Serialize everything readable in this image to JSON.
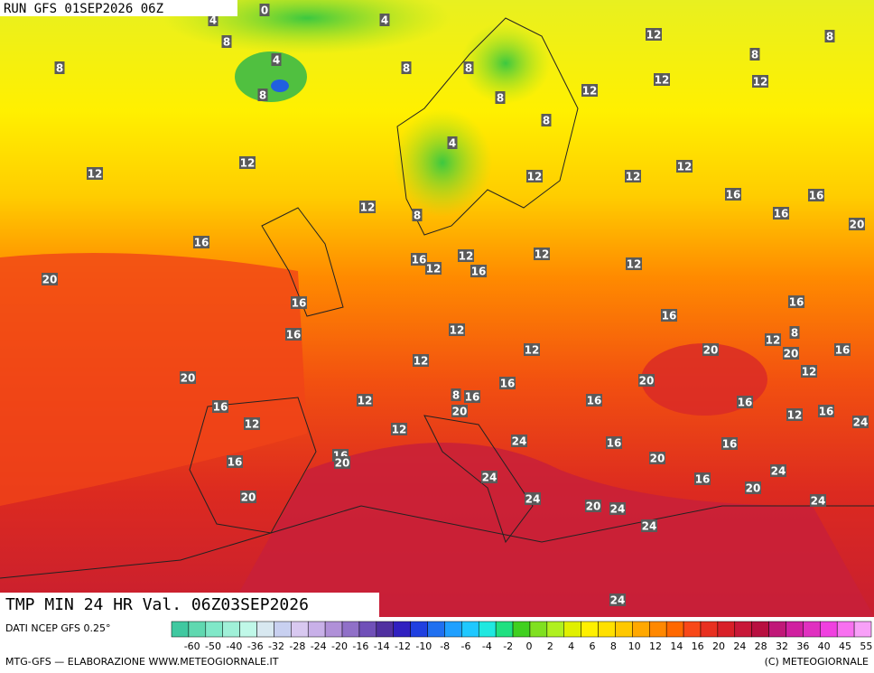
{
  "header": {
    "run": "RUN GFS 01SEP2026 06Z",
    "title": "TMP MIN 24 HR Val. 06Z03SEP2026"
  },
  "footer": {
    "source": "DATI NCEP GFS 0.25°",
    "credits": "MTG-GFS — ELABORAZIONE WWW.METEOGIORNALE.IT",
    "copyright": "(C) METEOGIORNALE"
  },
  "legend": {
    "labels": [
      "-60",
      "-50",
      "-40",
      "-36",
      "-32",
      "-28",
      "-24",
      "-20",
      "-16",
      "-14",
      "-12",
      "-10",
      "-8",
      "-6",
      "-4",
      "-2",
      "0",
      "2",
      "4",
      "6",
      "8",
      "10",
      "12",
      "14",
      "16",
      "20",
      "24",
      "28",
      "32",
      "36",
      "40",
      "45",
      "55"
    ]
  },
  "map": {
    "labels": [
      0,
      4,
      4,
      8,
      12,
      8,
      8,
      4,
      8,
      8,
      8,
      12,
      12,
      12,
      8,
      8,
      8,
      4,
      12,
      12,
      12,
      12,
      12,
      16,
      16,
      12,
      8,
      16,
      20,
      16,
      12,
      16,
      12,
      12,
      16,
      12,
      20,
      16,
      16,
      16,
      16,
      12,
      8,
      12,
      16,
      20,
      20,
      12,
      12,
      12,
      20,
      16,
      20,
      8,
      16,
      12,
      16,
      16,
      16,
      20,
      12,
      16,
      12,
      24,
      12,
      24,
      16,
      16,
      16,
      20,
      16,
      20,
      24,
      24,
      16,
      20,
      20,
      24,
      20,
      24,
      24,
      24,
      24
    ]
  }
}
